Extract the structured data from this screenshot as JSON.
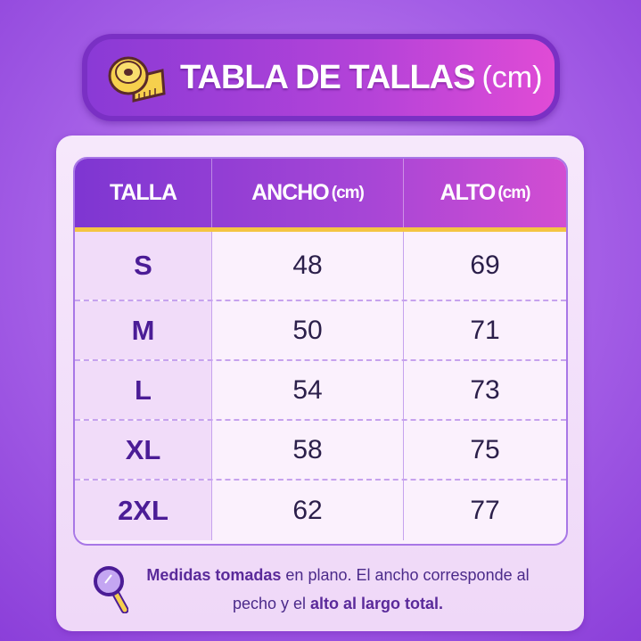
{
  "title": {
    "text": "TABLA DE TALLAS",
    "unit": "(cm)",
    "icon": "measuring-tape-icon"
  },
  "table": {
    "headers": [
      {
        "label": "TALLA",
        "unit": ""
      },
      {
        "label": "ANCHO",
        "unit": "(cm)"
      },
      {
        "label": "ALTO",
        "unit": "(cm)"
      }
    ],
    "rows": [
      {
        "size": "S",
        "ancho": "48",
        "alto": "69"
      },
      {
        "size": "M",
        "ancho": "50",
        "alto": "71"
      },
      {
        "size": "L",
        "ancho": "54",
        "alto": "73"
      },
      {
        "size": "XL",
        "ancho": "58",
        "alto": "75"
      },
      {
        "size": "2XL",
        "ancho": "62",
        "alto": "77"
      }
    ]
  },
  "note": {
    "icon": "magnifier-icon",
    "bold1": "Medidas tomadas",
    "text1": " en plano. El ancho corresponde al",
    "text2": "pecho y el ",
    "bold2": "alto al largo total."
  },
  "colors": {
    "accent": "#a746d6",
    "header_line": "#f4c542",
    "size_text": "#4b1c96"
  }
}
